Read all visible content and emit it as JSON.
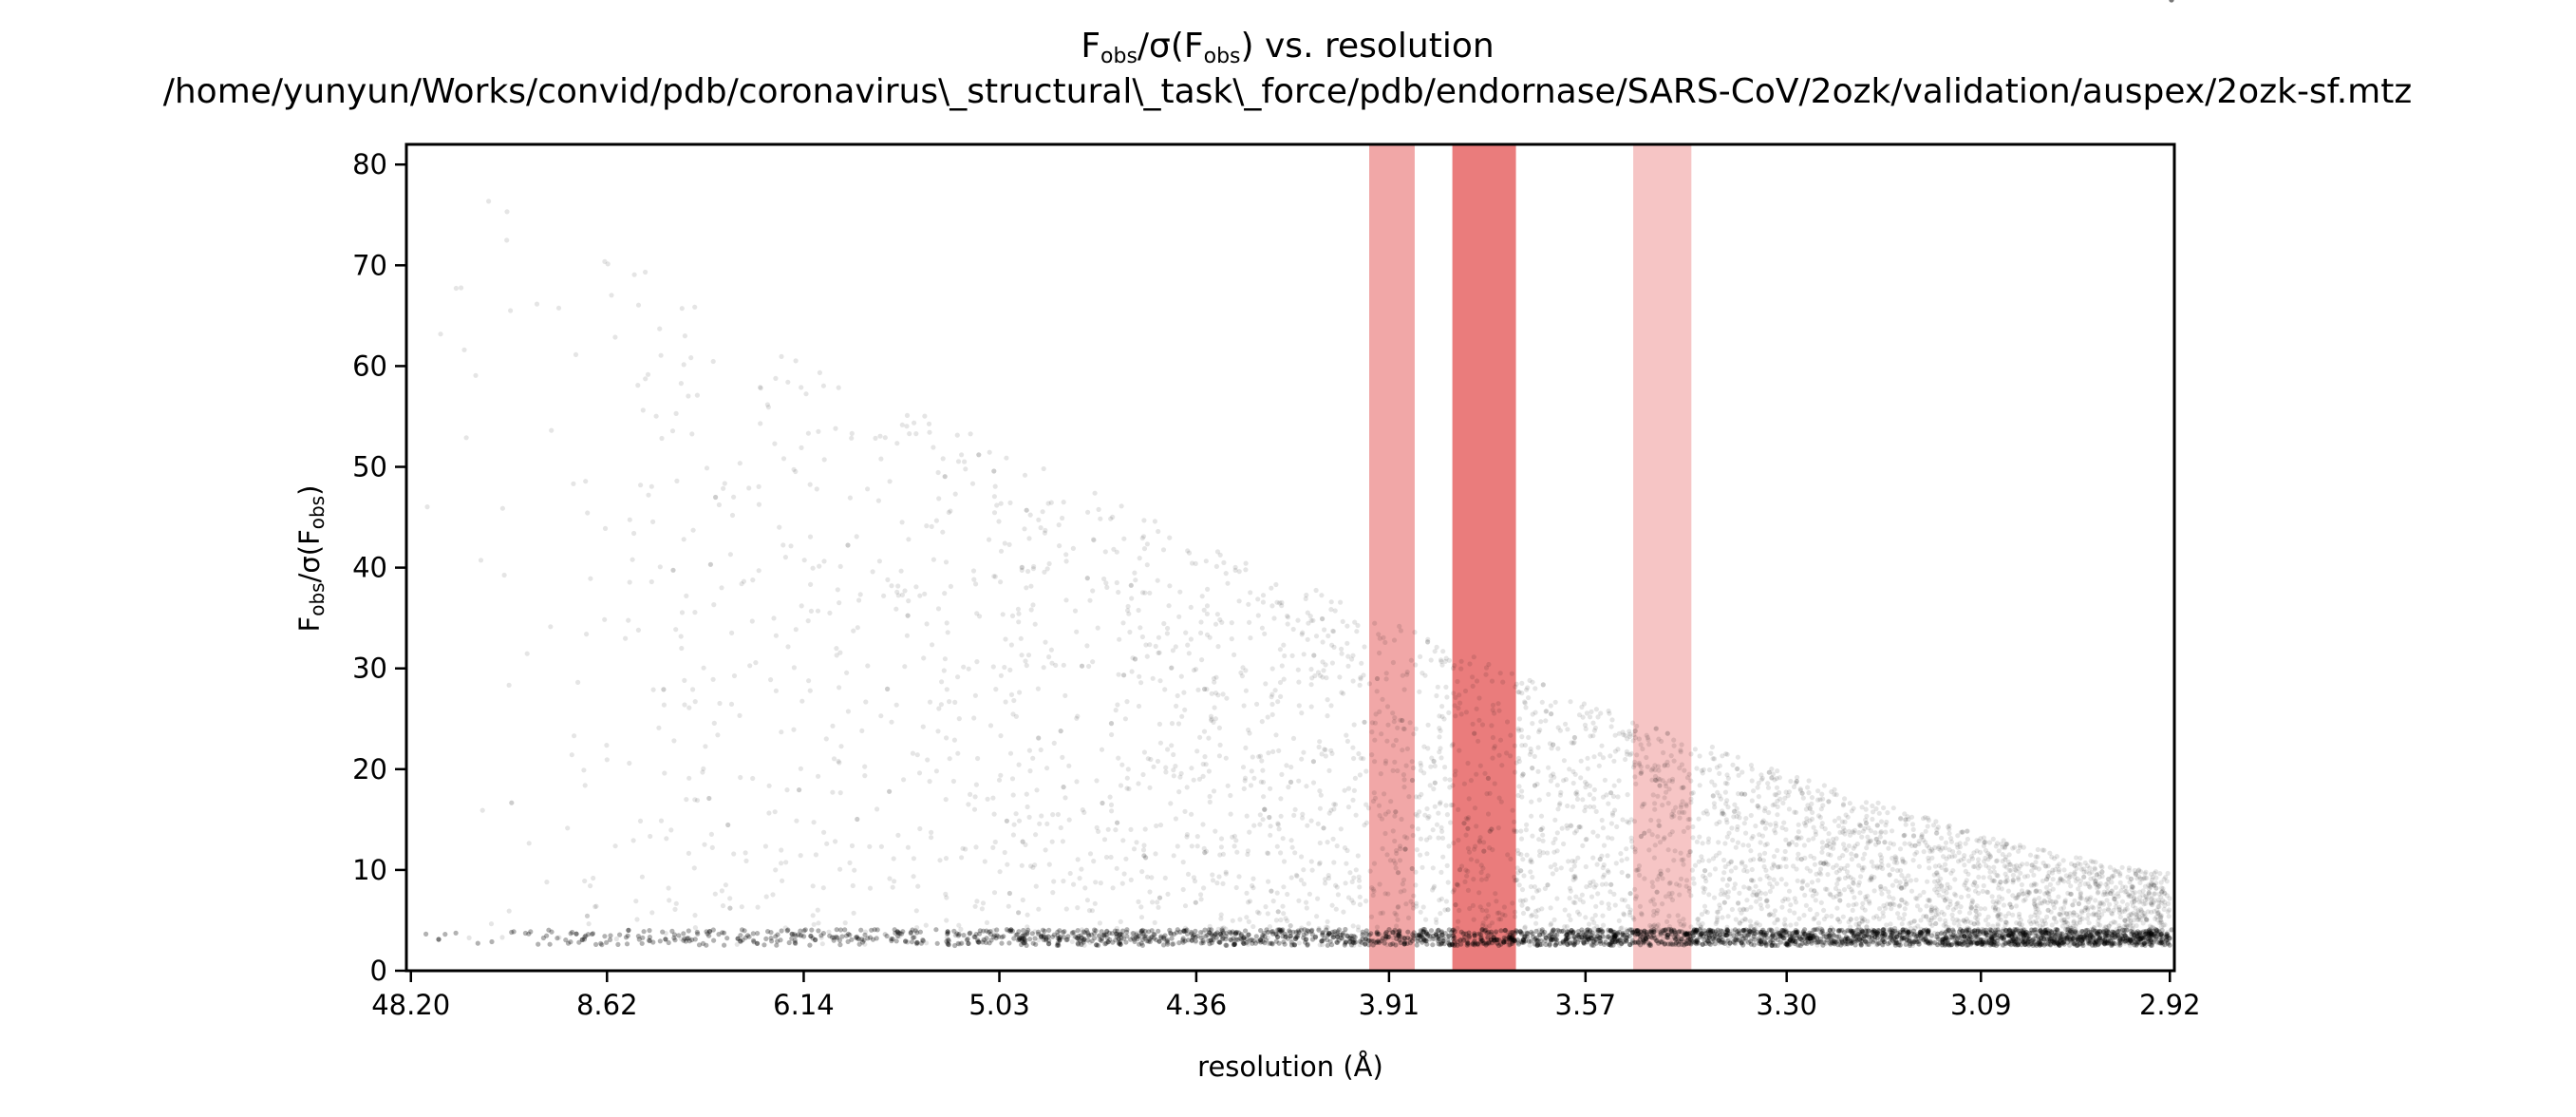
{
  "chart_data": {
    "type": "scatter",
    "title": {
      "main": "F",
      "main_sub1": "obs",
      "main_mid": "/σ(F",
      "main_sub2": "obs",
      "main_end": ") vs. resolution",
      "path": "/home/yunyun/Works/convid/pdb/coronavirus\\_structural\\_task\\_force/pdb/endornase/SARS-CoV/2ozk/validation/auspex/2ozk-sf.mtz"
    },
    "xlabel": "resolution (Å)",
    "ylabel": {
      "main": "F",
      "sub1": "obs",
      "mid": "/σ(F",
      "sub2": "obs",
      "end": ")"
    },
    "x_scale": "reciprocal-square (1/d²)",
    "ylim": [
      0,
      82
    ],
    "grid": false,
    "x_ticks": [
      "48.20",
      "8.62",
      "6.14",
      "5.03",
      "4.36",
      "3.91",
      "3.57",
      "3.30",
      "3.09",
      "2.92"
    ],
    "y_ticks": [
      0,
      10,
      20,
      30,
      40,
      50,
      60,
      70,
      80
    ],
    "point_color": "#000000",
    "point_alpha": 0.1,
    "ice_ring_bands": [
      {
        "from_A": 3.95,
        "to_A": 3.86,
        "color": "#e35050",
        "alpha": 0.5
      },
      {
        "from_A": 3.79,
        "to_A": 3.68,
        "color": "#e35050",
        "alpha": 0.75
      },
      {
        "from_A": 3.5,
        "to_A": 3.42,
        "color": "#e35050",
        "alpha": 0.33
      }
    ],
    "baseline_F_over_sigma": 2.5,
    "point_density_note_from_image": "dense cloud with points mostly below 80"
  }
}
